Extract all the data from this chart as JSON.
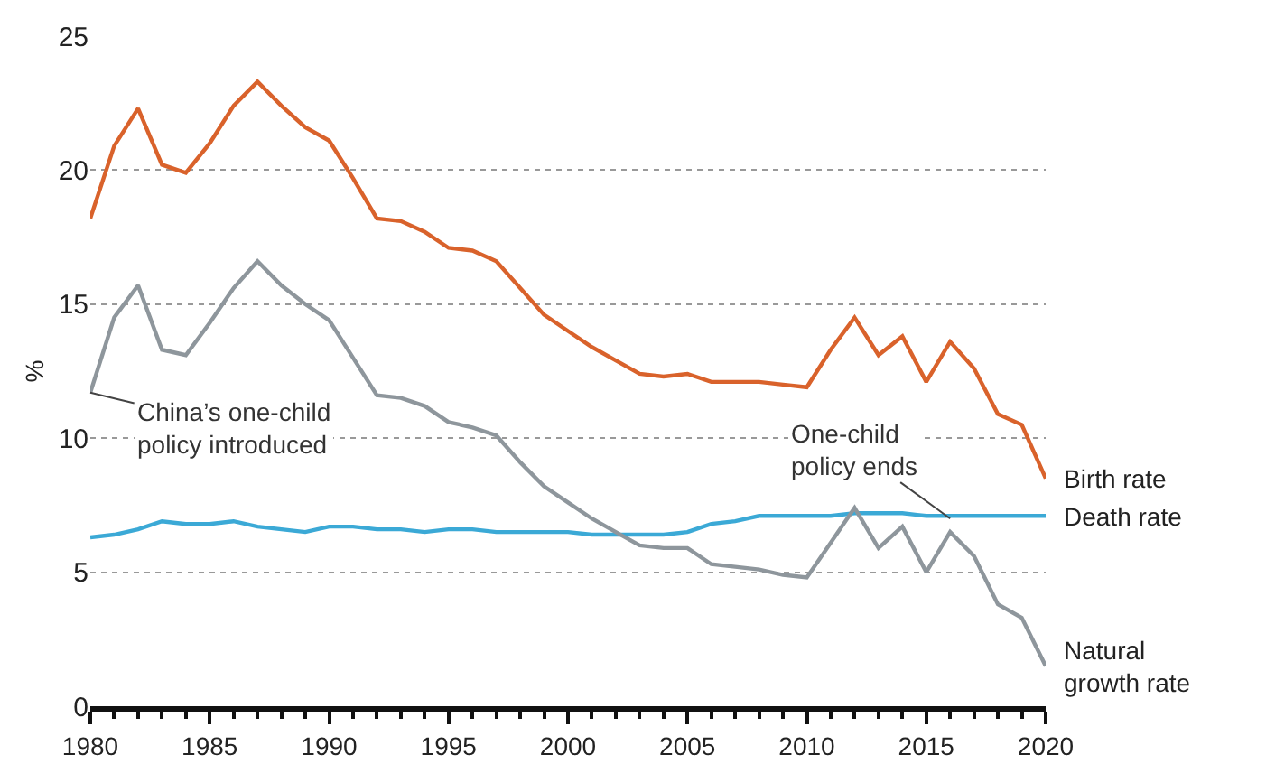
{
  "chart_data": {
    "type": "line",
    "ylabel": "%",
    "x": [
      1980,
      1981,
      1982,
      1983,
      1984,
      1985,
      1986,
      1987,
      1988,
      1989,
      1990,
      1991,
      1992,
      1993,
      1994,
      1995,
      1996,
      1997,
      1998,
      1999,
      2000,
      2001,
      2002,
      2003,
      2004,
      2005,
      2006,
      2007,
      2008,
      2009,
      2010,
      2011,
      2012,
      2013,
      2014,
      2015,
      2016,
      2017,
      2018,
      2019,
      2020
    ],
    "series": [
      {
        "name": "Birth rate",
        "color": "#d9622b",
        "values": [
          18.2,
          20.9,
          22.3,
          20.2,
          19.9,
          21.0,
          22.4,
          23.3,
          22.4,
          21.6,
          21.1,
          19.7,
          18.2,
          18.1,
          17.7,
          17.1,
          17.0,
          16.6,
          15.6,
          14.6,
          14.0,
          13.4,
          12.9,
          12.4,
          12.3,
          12.4,
          12.1,
          12.1,
          12.1,
          12.0,
          11.9,
          13.3,
          14.5,
          13.1,
          13.8,
          12.1,
          13.6,
          12.6,
          10.9,
          10.5,
          8.5
        ]
      },
      {
        "name": "Death rate",
        "color": "#3ba9d6",
        "values": [
          6.3,
          6.4,
          6.6,
          6.9,
          6.8,
          6.8,
          6.9,
          6.7,
          6.6,
          6.5,
          6.7,
          6.7,
          6.6,
          6.6,
          6.5,
          6.6,
          6.6,
          6.5,
          6.5,
          6.5,
          6.5,
          6.4,
          6.4,
          6.4,
          6.4,
          6.5,
          6.8,
          6.9,
          7.1,
          7.1,
          7.1,
          7.1,
          7.2,
          7.2,
          7.2,
          7.1,
          7.1,
          7.1,
          7.1,
          7.1,
          7.1
        ]
      },
      {
        "name": "Natural\ngrowth rate",
        "color": "#8e969c",
        "values": [
          11.7,
          14.5,
          15.7,
          13.3,
          13.1,
          14.3,
          15.6,
          16.6,
          15.7,
          15.0,
          14.4,
          13.0,
          11.6,
          11.5,
          11.2,
          10.6,
          10.4,
          10.1,
          9.1,
          8.2,
          7.6,
          7.0,
          6.5,
          6.0,
          5.9,
          5.9,
          5.3,
          5.2,
          5.1,
          4.9,
          4.8,
          6.1,
          7.4,
          5.9,
          6.7,
          5.0,
          6.5,
          5.6,
          3.8,
          3.3,
          1.5
        ]
      }
    ],
    "annotations": [
      {
        "text": "China’s one-child\npolicy introduced",
        "x": 1980,
        "y": 11.7
      },
      {
        "text": "One-child\npolicy ends",
        "x": 2016,
        "y": 7.0
      }
    ],
    "xlim": [
      1980,
      2020
    ],
    "xticks": [
      1980,
      1985,
      1990,
      1995,
      2000,
      2005,
      2010,
      2015,
      2020
    ],
    "ylim": [
      0,
      25
    ],
    "yticks": [
      0,
      5,
      10,
      15,
      20,
      25
    ],
    "grid": "y",
    "legend": false,
    "marker": "none",
    "line_style": "solid"
  }
}
